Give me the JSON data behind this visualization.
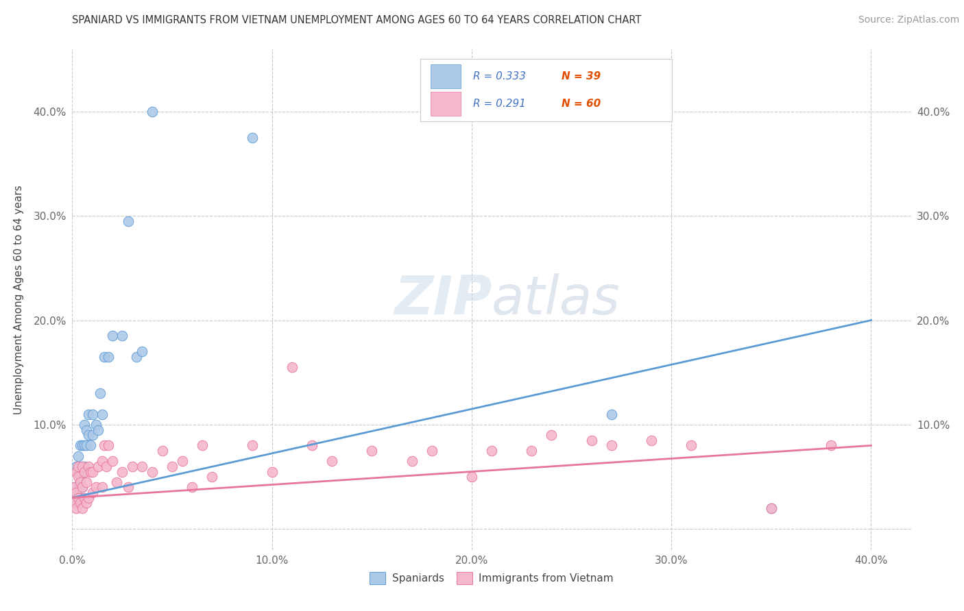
{
  "title": "SPANIARD VS IMMIGRANTS FROM VIETNAM UNEMPLOYMENT AMONG AGES 60 TO 64 YEARS CORRELATION CHART",
  "source": "Source: ZipAtlas.com",
  "ylabel": "Unemployment Among Ages 60 to 64 years",
  "xlim": [
    0.0,
    0.42
  ],
  "ylim": [
    -0.02,
    0.46
  ],
  "xticks": [
    0.0,
    0.1,
    0.2,
    0.3,
    0.4
  ],
  "yticks": [
    0.0,
    0.1,
    0.2,
    0.3,
    0.4
  ],
  "xticklabels": [
    "0.0%",
    "10.0%",
    "20.0%",
    "30.0%",
    "40.0%"
  ],
  "yticklabels": [
    "",
    "10.0%",
    "20.0%",
    "30.0%",
    "40.0%"
  ],
  "right_yticklabels": [
    "",
    "10.0%",
    "20.0%",
    "30.0%",
    "40.0%"
  ],
  "spaniards_color": "#adc9e8",
  "vietnam_color": "#f5b8cc",
  "trend_blue": "#5b9bd5",
  "trend_pink": "#e8759a",
  "legend_text_color": "#4472c4",
  "watermark_color": "#d0dce8",
  "blue_line_start_y": 0.03,
  "blue_line_end_y": 0.2,
  "pink_line_start_y": 0.03,
  "pink_line_end_y": 0.08,
  "spaniards_x": [
    0.001,
    0.001,
    0.002,
    0.002,
    0.002,
    0.003,
    0.003,
    0.003,
    0.004,
    0.004,
    0.004,
    0.005,
    0.005,
    0.005,
    0.006,
    0.006,
    0.006,
    0.007,
    0.007,
    0.008,
    0.008,
    0.009,
    0.01,
    0.01,
    0.012,
    0.013,
    0.014,
    0.015,
    0.016,
    0.018,
    0.02,
    0.025,
    0.028,
    0.032,
    0.035,
    0.04,
    0.09,
    0.27,
    0.35
  ],
  "spaniards_y": [
    0.03,
    0.04,
    0.025,
    0.035,
    0.06,
    0.04,
    0.055,
    0.07,
    0.03,
    0.05,
    0.08,
    0.04,
    0.06,
    0.08,
    0.06,
    0.08,
    0.1,
    0.08,
    0.095,
    0.09,
    0.11,
    0.08,
    0.09,
    0.11,
    0.1,
    0.095,
    0.13,
    0.11,
    0.165,
    0.165,
    0.185,
    0.185,
    0.295,
    0.165,
    0.17,
    0.4,
    0.375,
    0.11,
    0.02
  ],
  "vietnam_x": [
    0.001,
    0.001,
    0.002,
    0.002,
    0.002,
    0.003,
    0.003,
    0.003,
    0.004,
    0.004,
    0.005,
    0.005,
    0.005,
    0.006,
    0.006,
    0.007,
    0.007,
    0.008,
    0.008,
    0.009,
    0.01,
    0.01,
    0.012,
    0.013,
    0.015,
    0.015,
    0.016,
    0.017,
    0.018,
    0.02,
    0.022,
    0.025,
    0.028,
    0.03,
    0.035,
    0.04,
    0.045,
    0.05,
    0.055,
    0.06,
    0.065,
    0.07,
    0.09,
    0.1,
    0.11,
    0.12,
    0.13,
    0.15,
    0.17,
    0.18,
    0.2,
    0.21,
    0.23,
    0.24,
    0.26,
    0.27,
    0.29,
    0.31,
    0.35,
    0.38
  ],
  "vietnam_y": [
    0.025,
    0.04,
    0.02,
    0.035,
    0.055,
    0.03,
    0.05,
    0.06,
    0.025,
    0.045,
    0.02,
    0.04,
    0.06,
    0.03,
    0.055,
    0.025,
    0.045,
    0.03,
    0.06,
    0.055,
    0.035,
    0.055,
    0.04,
    0.06,
    0.04,
    0.065,
    0.08,
    0.06,
    0.08,
    0.065,
    0.045,
    0.055,
    0.04,
    0.06,
    0.06,
    0.055,
    0.075,
    0.06,
    0.065,
    0.04,
    0.08,
    0.05,
    0.08,
    0.055,
    0.155,
    0.08,
    0.065,
    0.075,
    0.065,
    0.075,
    0.05,
    0.075,
    0.075,
    0.09,
    0.085,
    0.08,
    0.085,
    0.08,
    0.02,
    0.08
  ]
}
